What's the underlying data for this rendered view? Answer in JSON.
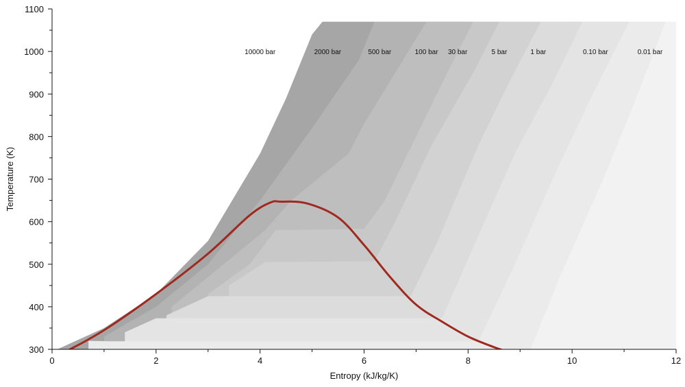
{
  "chart_data": {
    "type": "area",
    "xlabel": "Entropy (kJ/kg/K)",
    "ylabel": "Temperature (K)",
    "xlim": [
      0,
      12
    ],
    "ylim": [
      300,
      1100
    ],
    "xticks": [
      0,
      2,
      4,
      6,
      8,
      10,
      12
    ],
    "yticks": [
      300,
      400,
      500,
      600,
      700,
      800,
      900,
      1000,
      1100
    ],
    "grid": false,
    "isobars": [
      {
        "label": "10000 bar",
        "color": "#a6a6a6",
        "boundary": [
          [
            0.1,
            300
          ],
          [
            1.0,
            350
          ],
          [
            2.0,
            430
          ],
          [
            3.0,
            555
          ],
          [
            4.0,
            760
          ],
          [
            4.5,
            890
          ],
          [
            5.0,
            1040
          ],
          [
            5.2,
            1070
          ]
        ]
      },
      {
        "label": "2000 bar",
        "color": "#b3b3b3",
        "boundary": [
          [
            1.0,
            330
          ],
          [
            2.0,
            400
          ],
          [
            3.0,
            500
          ],
          [
            4.0,
            650
          ],
          [
            5.0,
            820
          ],
          [
            5.9,
            980
          ],
          [
            6.2,
            1070
          ]
        ]
      },
      {
        "label": "500 bar",
        "color": "#bebebe",
        "boundary": [
          [
            2.3,
            400
          ],
          [
            3.3,
            500
          ],
          [
            4.1,
            580
          ],
          [
            4.6,
            650
          ],
          [
            5.2,
            710
          ],
          [
            5.7,
            760
          ],
          [
            6.0,
            830
          ],
          [
            6.6,
            950
          ],
          [
            7.2,
            1070
          ]
        ]
      },
      {
        "label": "100 bar",
        "color": "#c8c8c8",
        "boundary": [
          [
            3.0,
            430
          ],
          [
            3.8,
            500
          ],
          [
            4.3,
            580
          ],
          [
            6.0,
            583
          ],
          [
            6.4,
            650
          ],
          [
            7.0,
            800
          ],
          [
            7.6,
            950
          ],
          [
            8.1,
            1070
          ]
        ]
      },
      {
        "label": "30 bar",
        "color": "#d2d2d2",
        "boundary": [
          [
            3.4,
            450
          ],
          [
            4.1,
            505
          ],
          [
            6.2,
            507
          ],
          [
            6.6,
            600
          ],
          [
            7.3,
            780
          ],
          [
            8.1,
            950
          ],
          [
            8.6,
            1070
          ]
        ]
      },
      {
        "label": "5 bar",
        "color": "#dcdcdc",
        "boundary": [
          [
            2.2,
            380
          ],
          [
            3.0,
            425
          ],
          [
            6.9,
            425
          ],
          [
            7.4,
            550
          ],
          [
            8.2,
            780
          ],
          [
            8.8,
            930
          ],
          [
            9.4,
            1070
          ]
        ]
      },
      {
        "label": "1 bar",
        "color": "#e4e4e4",
        "boundary": [
          [
            1.4,
            340
          ],
          [
            2.0,
            373
          ],
          [
            7.5,
            373
          ],
          [
            8.1,
            540
          ],
          [
            8.9,
            760
          ],
          [
            9.6,
            920
          ],
          [
            10.2,
            1070
          ]
        ]
      },
      {
        "label": "0.10 bar",
        "color": "#ebebeb",
        "boundary": [
          [
            0.7,
            320
          ],
          [
            1.1,
            319
          ],
          [
            8.2,
            319
          ],
          [
            8.9,
            500
          ],
          [
            9.7,
            720
          ],
          [
            10.4,
            900
          ],
          [
            11.1,
            1070
          ]
        ]
      },
      {
        "label": "0.01 bar",
        "color": "#f2f2f2",
        "boundary": [
          [
            0.1,
            300
          ],
          [
            9.2,
            300
          ],
          [
            9.8,
            480
          ],
          [
            10.6,
            700
          ],
          [
            11.2,
            880
          ],
          [
            11.8,
            1070
          ]
        ]
      }
    ],
    "saturation_curve": {
      "color": "#a0291f",
      "points": [
        [
          0.3,
          297
        ],
        [
          1.0,
          345
        ],
        [
          2.0,
          430
        ],
        [
          3.0,
          525
        ],
        [
          3.8,
          615
        ],
        [
          4.2,
          645
        ],
        [
          4.4,
          647
        ],
        [
          4.9,
          643
        ],
        [
          5.5,
          610
        ],
        [
          6.0,
          545
        ],
        [
          6.5,
          470
        ],
        [
          7.0,
          405
        ],
        [
          7.5,
          365
        ],
        [
          8.0,
          330
        ],
        [
          8.5,
          305
        ],
        [
          8.7,
          297
        ]
      ]
    }
  }
}
